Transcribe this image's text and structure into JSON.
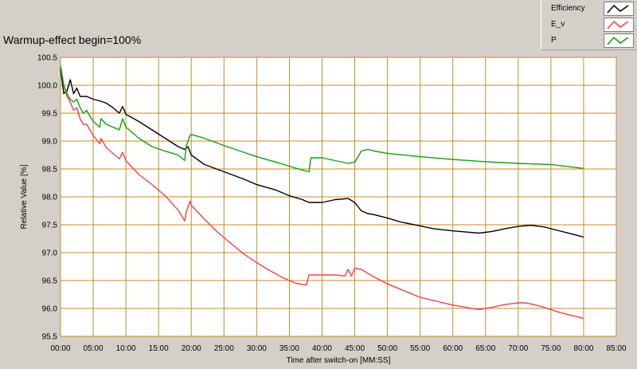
{
  "chart_data": {
    "type": "line",
    "title": "Warmup-effect begin=100%",
    "xlabel": "Time after switch-on [MM:SS]",
    "ylabel": "Relative Value [%]",
    "xlim": [
      0,
      85
    ],
    "ylim": [
      95.5,
      100.5
    ],
    "x_ticks": [
      0,
      5,
      10,
      15,
      20,
      25,
      30,
      35,
      40,
      45,
      50,
      55,
      60,
      65,
      70,
      75,
      80,
      85
    ],
    "x_tick_labels": [
      "00:00",
      "05:00",
      "10:00",
      "15:00",
      "20:00",
      "25:00",
      "30:00",
      "35:00",
      "40:00",
      "45:00",
      "50:00",
      "55:00",
      "60:00",
      "65:00",
      "70:00",
      "75:00",
      "80:00",
      "85:00"
    ],
    "y_ticks": [
      95.5,
      96.0,
      96.5,
      97.0,
      97.5,
      98.0,
      98.5,
      99.0,
      99.5,
      100.0,
      100.5
    ],
    "y_tick_labels": [
      "95.5",
      "96.0",
      "96.5",
      "97.0",
      "97.5",
      "98.0",
      "98.5",
      "99.0",
      "99.5",
      "100.0",
      "100.5"
    ],
    "grid": true,
    "legend_position": "top-right",
    "series": [
      {
        "name": "Efficiency",
        "color": "#000000",
        "x": [
          0,
          0.5,
          1,
          1.5,
          2,
          2.5,
          3,
          4,
          5,
          6,
          7,
          8,
          9,
          9.5,
          10,
          12,
          14,
          16,
          18,
          19,
          19.5,
          20,
          22,
          25,
          28,
          30,
          33,
          35,
          37,
          38,
          40,
          42,
          44,
          45,
          46,
          47,
          48,
          50,
          52,
          55,
          57,
          60,
          62,
          64,
          66,
          68,
          70,
          72,
          74,
          76,
          78,
          80
        ],
        "values": [
          100.3,
          99.85,
          99.9,
          100.1,
          99.85,
          99.95,
          99.8,
          99.8,
          99.75,
          99.72,
          99.68,
          99.6,
          99.5,
          99.62,
          99.48,
          99.35,
          99.2,
          99.05,
          98.9,
          98.85,
          98.9,
          98.75,
          98.58,
          98.45,
          98.32,
          98.22,
          98.12,
          98.02,
          97.95,
          97.9,
          97.9,
          97.95,
          97.97,
          97.9,
          97.75,
          97.7,
          97.68,
          97.62,
          97.55,
          97.48,
          97.43,
          97.39,
          97.37,
          97.35,
          97.38,
          97.43,
          97.47,
          97.49,
          97.46,
          97.4,
          97.34,
          97.28
        ]
      },
      {
        "name": "E_v",
        "color": "#ee4444",
        "x": [
          0,
          0.5,
          1,
          1.5,
          2,
          2.5,
          3,
          3.5,
          4,
          5,
          6,
          6.2,
          7,
          8,
          9,
          9.5,
          10,
          12,
          14,
          16,
          18,
          19,
          19.2,
          19.8,
          20,
          22,
          24,
          26,
          28,
          30,
          32,
          34,
          36,
          37.6,
          38,
          40,
          42,
          43.5,
          44,
          44.5,
          45,
          46,
          48,
          50,
          55,
          60,
          64,
          66,
          68,
          70,
          71,
          72,
          74,
          76,
          78,
          80
        ],
        "values": [
          100.35,
          100.0,
          99.8,
          99.7,
          99.55,
          99.6,
          99.4,
          99.3,
          99.3,
          99.1,
          98.95,
          99.05,
          98.88,
          98.78,
          98.68,
          98.8,
          98.65,
          98.4,
          98.22,
          98.02,
          97.76,
          97.57,
          97.72,
          97.92,
          97.85,
          97.6,
          97.37,
          97.17,
          96.98,
          96.82,
          96.68,
          96.55,
          96.45,
          96.42,
          96.6,
          96.6,
          96.6,
          96.58,
          96.7,
          96.58,
          96.72,
          96.7,
          96.56,
          96.44,
          96.2,
          96.06,
          95.98,
          96.02,
          96.07,
          96.1,
          96.1,
          96.08,
          96.02,
          95.94,
          95.88,
          95.82
        ]
      },
      {
        "name": "P",
        "color": "#10a010",
        "x": [
          0,
          0.5,
          1,
          1.5,
          2,
          2.5,
          3,
          3.5,
          4,
          5,
          6,
          6.2,
          7,
          8,
          9,
          9.5,
          10,
          12,
          14,
          16,
          18,
          19,
          19.2,
          19.8,
          20,
          22,
          25,
          28,
          30,
          33,
          35,
          37,
          38,
          38.3,
          40,
          42,
          44,
          45,
          46,
          47,
          48,
          50,
          55,
          60,
          65,
          70,
          75,
          80
        ],
        "values": [
          100.35,
          100.0,
          99.85,
          99.75,
          99.7,
          99.75,
          99.6,
          99.5,
          99.55,
          99.35,
          99.25,
          99.4,
          99.3,
          99.25,
          99.2,
          99.4,
          99.25,
          99.05,
          98.9,
          98.82,
          98.75,
          98.65,
          98.9,
          99.1,
          99.12,
          99.05,
          98.92,
          98.8,
          98.72,
          98.62,
          98.55,
          98.48,
          98.45,
          98.7,
          98.7,
          98.65,
          98.6,
          98.62,
          98.82,
          98.85,
          98.82,
          98.78,
          98.72,
          98.67,
          98.63,
          98.6,
          98.58,
          98.51
        ]
      }
    ]
  }
}
